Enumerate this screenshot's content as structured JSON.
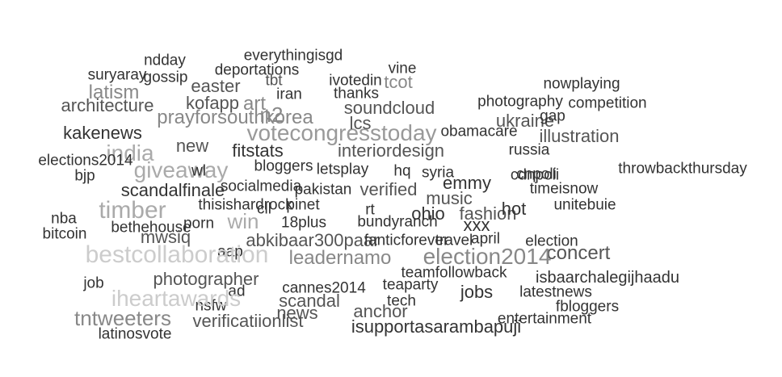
{
  "word_cloud": {
    "words": [
      {
        "text": "nowplaying",
        "color": "#333333"
      },
      {
        "text": "election",
        "color": "#333333"
      },
      {
        "text": "cannes2014",
        "color": "#333333"
      },
      {
        "text": "pakistan",
        "color": "#333333"
      },
      {
        "text": "timeisnow",
        "color": "#333333"
      },
      {
        "text": "nba",
        "color": "#333333"
      },
      {
        "text": "kakenews",
        "color": "#333333"
      },
      {
        "text": "ohio",
        "color": "#333333"
      },
      {
        "text": "isupportasarambapuji",
        "color": "#333333"
      },
      {
        "text": "thisishardrock",
        "color": "#333333"
      },
      {
        "text": "teamfollowback",
        "color": "#333333"
      },
      {
        "text": "xxx",
        "color": "#333333"
      },
      {
        "text": "giveaway",
        "color": "#aaaaaa"
      },
      {
        "text": "photography",
        "color": "#333333"
      },
      {
        "text": "ukraine",
        "color": "#555555"
      },
      {
        "text": "scandalfinale",
        "color": "#333333"
      },
      {
        "text": "latism",
        "color": "#888888"
      },
      {
        "text": "vine",
        "color": "#333333"
      },
      {
        "text": "emmy",
        "color": "#333333"
      },
      {
        "text": "nsfw",
        "color": "#333333"
      },
      {
        "text": "travel",
        "color": "#333333"
      },
      {
        "text": "bjp",
        "color": "#333333"
      },
      {
        "text": "win",
        "color": "#aaaaaa"
      },
      {
        "text": "gossip",
        "color": "#333333"
      },
      {
        "text": "everythingisgd",
        "color": "#333333"
      },
      {
        "text": "tech",
        "color": "#333333"
      },
      {
        "text": "rt",
        "color": "#333333"
      },
      {
        "text": "pinet",
        "color": "#333333"
      },
      {
        "text": "deportations",
        "color": "#333333"
      },
      {
        "text": "concert",
        "color": "#555555"
      },
      {
        "text": "bethehouse",
        "color": "#333333"
      },
      {
        "text": "verificatiionlist",
        "color": "#555555"
      },
      {
        "text": "interiordesign",
        "color": "#555555"
      },
      {
        "text": "unitebuie",
        "color": "#333333"
      },
      {
        "text": "throwbackthursday",
        "color": "#333333"
      },
      {
        "text": "n2",
        "color": "#888888"
      },
      {
        "text": "new",
        "color": "#555555"
      },
      {
        "text": "ivotedin",
        "color": "#333333"
      },
      {
        "text": "bitcoin",
        "color": "#333333"
      },
      {
        "text": "hq",
        "color": "#333333"
      },
      {
        "text": "18plus",
        "color": "#333333"
      },
      {
        "text": "illustration",
        "color": "#555555"
      },
      {
        "text": "architecture",
        "color": "#555555"
      },
      {
        "text": "votecongresstoday",
        "color": "#999999"
      },
      {
        "text": "kofapp",
        "color": "#555555"
      },
      {
        "text": "tbt",
        "color": "#555555"
      },
      {
        "text": "election2014",
        "color": "#888888"
      },
      {
        "text": "fitstats",
        "color": "#333333"
      },
      {
        "text": "lcs",
        "color": "#555555"
      },
      {
        "text": "ad",
        "color": "#333333"
      },
      {
        "text": "syria",
        "color": "#333333"
      },
      {
        "text": "prayforsouthkorea",
        "color": "#888888"
      },
      {
        "text": "abkibaar300paar",
        "color": "#555555"
      },
      {
        "text": "leadernamo",
        "color": "#888888"
      },
      {
        "text": "easter",
        "color": "#555555"
      },
      {
        "text": "fbloggers",
        "color": "#333333"
      },
      {
        "text": "april",
        "color": "#333333"
      },
      {
        "text": "aap",
        "color": "#333333"
      },
      {
        "text": "suryaray",
        "color": "#333333"
      },
      {
        "text": "socialmedia",
        "color": "#333333"
      },
      {
        "text": "entertainment",
        "color": "#333333"
      },
      {
        "text": "gap",
        "color": "#333333"
      },
      {
        "text": "cnpoli",
        "color": "#333333"
      },
      {
        "text": "teaparty",
        "color": "#333333"
      },
      {
        "text": "tntweeters",
        "color": "#888888"
      },
      {
        "text": "iheartawards",
        "color": "#cccccc"
      },
      {
        "text": "competition",
        "color": "#333333"
      },
      {
        "text": "bloggers",
        "color": "#333333"
      },
      {
        "text": "russia",
        "color": "#333333"
      },
      {
        "text": "ndday",
        "color": "#333333"
      },
      {
        "text": "jobs",
        "color": "#333333"
      },
      {
        "text": "news",
        "color": "#555555"
      },
      {
        "text": "art",
        "color": "#888888"
      },
      {
        "text": "fanticforever",
        "color": "#333333"
      },
      {
        "text": "cdnpoli",
        "color": "#333333"
      },
      {
        "text": "bundyranch",
        "color": "#333333"
      },
      {
        "text": "isbaarchalegijhaadu",
        "color": "#333333"
      },
      {
        "text": "tcot",
        "color": "#888888"
      },
      {
        "text": "thanks",
        "color": "#333333"
      },
      {
        "text": "anchor",
        "color": "#555555"
      },
      {
        "text": "scandal",
        "color": "#555555"
      },
      {
        "text": "india",
        "color": "#aaaaaa"
      },
      {
        "text": "letsplay",
        "color": "#333333"
      },
      {
        "text": "verified",
        "color": "#555555"
      },
      {
        "text": "soundcloud",
        "color": "#555555"
      },
      {
        "text": "porn",
        "color": "#333333"
      },
      {
        "text": "bestcollaboration",
        "color": "#cccccc"
      },
      {
        "text": "mwsiq",
        "color": "#555555"
      },
      {
        "text": "iran",
        "color": "#333333"
      },
      {
        "text": "photographer",
        "color": "#555555"
      },
      {
        "text": "job",
        "color": "#333333"
      },
      {
        "text": "obamacare",
        "color": "#333333"
      },
      {
        "text": "fashion",
        "color": "#555555"
      },
      {
        "text": "music",
        "color": "#555555"
      },
      {
        "text": "elections2014",
        "color": "#333333"
      },
      {
        "text": "timber",
        "color": "#aaaaaa"
      },
      {
        "text": "latinosvote",
        "color": "#333333"
      },
      {
        "text": "latestnews",
        "color": "#333333"
      },
      {
        "text": "hot",
        "color": "#333333"
      },
      {
        "text": "wl",
        "color": "#333333"
      },
      {
        "text": "cll",
        "color": "#333333"
      }
    ]
  }
}
